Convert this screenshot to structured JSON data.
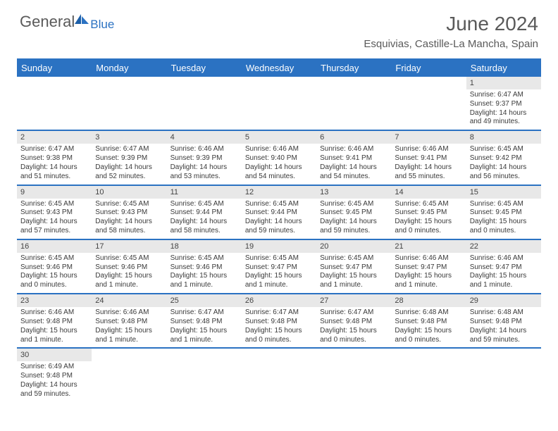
{
  "logo": {
    "text1": "General",
    "text2": "Blue"
  },
  "title": "June 2024",
  "location": "Esquivias, Castille-La Mancha, Spain",
  "colors": {
    "header_bar": "#2b72c2",
    "daynum_bg": "#e8e8e8",
    "text": "#5a5a5a",
    "body_text": "#3a3a3a",
    "background": "#ffffff"
  },
  "weekdays": [
    "Sunday",
    "Monday",
    "Tuesday",
    "Wednesday",
    "Thursday",
    "Friday",
    "Saturday"
  ],
  "weeks": [
    [
      null,
      null,
      null,
      null,
      null,
      null,
      {
        "n": "1",
        "sr": "6:47 AM",
        "ss": "9:37 PM",
        "dl": "14 hours",
        "dl2": "and 49 minutes."
      }
    ],
    [
      {
        "n": "2",
        "sr": "6:47 AM",
        "ss": "9:38 PM",
        "dl": "14 hours",
        "dl2": "and 51 minutes."
      },
      {
        "n": "3",
        "sr": "6:47 AM",
        "ss": "9:39 PM",
        "dl": "14 hours",
        "dl2": "and 52 minutes."
      },
      {
        "n": "4",
        "sr": "6:46 AM",
        "ss": "9:39 PM",
        "dl": "14 hours",
        "dl2": "and 53 minutes."
      },
      {
        "n": "5",
        "sr": "6:46 AM",
        "ss": "9:40 PM",
        "dl": "14 hours",
        "dl2": "and 54 minutes."
      },
      {
        "n": "6",
        "sr": "6:46 AM",
        "ss": "9:41 PM",
        "dl": "14 hours",
        "dl2": "and 54 minutes."
      },
      {
        "n": "7",
        "sr": "6:46 AM",
        "ss": "9:41 PM",
        "dl": "14 hours",
        "dl2": "and 55 minutes."
      },
      {
        "n": "8",
        "sr": "6:45 AM",
        "ss": "9:42 PM",
        "dl": "14 hours",
        "dl2": "and 56 minutes."
      }
    ],
    [
      {
        "n": "9",
        "sr": "6:45 AM",
        "ss": "9:43 PM",
        "dl": "14 hours",
        "dl2": "and 57 minutes."
      },
      {
        "n": "10",
        "sr": "6:45 AM",
        "ss": "9:43 PM",
        "dl": "14 hours",
        "dl2": "and 58 minutes."
      },
      {
        "n": "11",
        "sr": "6:45 AM",
        "ss": "9:44 PM",
        "dl": "14 hours",
        "dl2": "and 58 minutes."
      },
      {
        "n": "12",
        "sr": "6:45 AM",
        "ss": "9:44 PM",
        "dl": "14 hours",
        "dl2": "and 59 minutes."
      },
      {
        "n": "13",
        "sr": "6:45 AM",
        "ss": "9:45 PM",
        "dl": "14 hours",
        "dl2": "and 59 minutes."
      },
      {
        "n": "14",
        "sr": "6:45 AM",
        "ss": "9:45 PM",
        "dl": "15 hours",
        "dl2": "and 0 minutes."
      },
      {
        "n": "15",
        "sr": "6:45 AM",
        "ss": "9:45 PM",
        "dl": "15 hours",
        "dl2": "and 0 minutes."
      }
    ],
    [
      {
        "n": "16",
        "sr": "6:45 AM",
        "ss": "9:46 PM",
        "dl": "15 hours",
        "dl2": "and 0 minutes."
      },
      {
        "n": "17",
        "sr": "6:45 AM",
        "ss": "9:46 PM",
        "dl": "15 hours",
        "dl2": "and 1 minute."
      },
      {
        "n": "18",
        "sr": "6:45 AM",
        "ss": "9:46 PM",
        "dl": "15 hours",
        "dl2": "and 1 minute."
      },
      {
        "n": "19",
        "sr": "6:45 AM",
        "ss": "9:47 PM",
        "dl": "15 hours",
        "dl2": "and 1 minute."
      },
      {
        "n": "20",
        "sr": "6:45 AM",
        "ss": "9:47 PM",
        "dl": "15 hours",
        "dl2": "and 1 minute."
      },
      {
        "n": "21",
        "sr": "6:46 AM",
        "ss": "9:47 PM",
        "dl": "15 hours",
        "dl2": "and 1 minute."
      },
      {
        "n": "22",
        "sr": "6:46 AM",
        "ss": "9:47 PM",
        "dl": "15 hours",
        "dl2": "and 1 minute."
      }
    ],
    [
      {
        "n": "23",
        "sr": "6:46 AM",
        "ss": "9:48 PM",
        "dl": "15 hours",
        "dl2": "and 1 minute."
      },
      {
        "n": "24",
        "sr": "6:46 AM",
        "ss": "9:48 PM",
        "dl": "15 hours",
        "dl2": "and 1 minute."
      },
      {
        "n": "25",
        "sr": "6:47 AM",
        "ss": "9:48 PM",
        "dl": "15 hours",
        "dl2": "and 1 minute."
      },
      {
        "n": "26",
        "sr": "6:47 AM",
        "ss": "9:48 PM",
        "dl": "15 hours",
        "dl2": "and 0 minutes."
      },
      {
        "n": "27",
        "sr": "6:47 AM",
        "ss": "9:48 PM",
        "dl": "15 hours",
        "dl2": "and 0 minutes."
      },
      {
        "n": "28",
        "sr": "6:48 AM",
        "ss": "9:48 PM",
        "dl": "15 hours",
        "dl2": "and 0 minutes."
      },
      {
        "n": "29",
        "sr": "6:48 AM",
        "ss": "9:48 PM",
        "dl": "14 hours",
        "dl2": "and 59 minutes."
      }
    ],
    [
      {
        "n": "30",
        "sr": "6:49 AM",
        "ss": "9:48 PM",
        "dl": "14 hours",
        "dl2": "and 59 minutes."
      },
      null,
      null,
      null,
      null,
      null,
      null
    ]
  ],
  "labels": {
    "sunrise": "Sunrise:",
    "sunset": "Sunset:",
    "daylight": "Daylight:"
  }
}
